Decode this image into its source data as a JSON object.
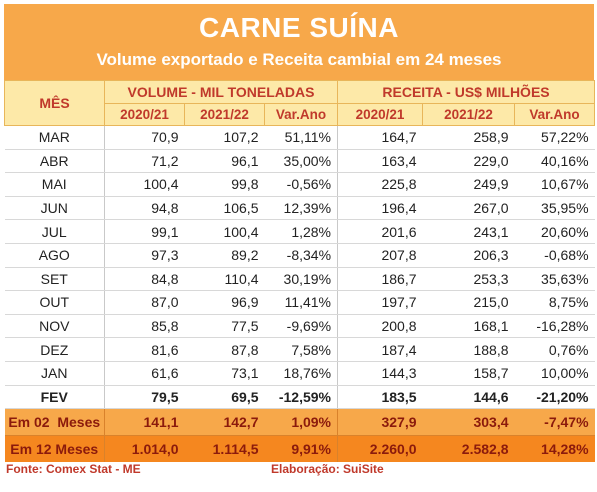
{
  "title": "CARNE SUÍNA",
  "subtitle": "Volume exportado e Receita cambial em 24 meses",
  "headers": {
    "mes": "MÊS",
    "volume": "VOLUME - MIL TONELADAS",
    "receita": "RECEITA - US$ MILHÕES",
    "cols": [
      "2020/21",
      "2021/22",
      "Var.Ano",
      "2020/21",
      "2021/22",
      "Var.Ano"
    ]
  },
  "rows": [
    {
      "mes": "MAR",
      "v1": "70,9",
      "v2": "107,2",
      "vv": "51,11%",
      "r1": "164,7",
      "r2": "258,9",
      "rv": "57,22%"
    },
    {
      "mes": "ABR",
      "v1": "71,2",
      "v2": "96,1",
      "vv": "35,00%",
      "r1": "163,4",
      "r2": "229,0",
      "rv": "40,16%"
    },
    {
      "mes": "MAI",
      "v1": "100,4",
      "v2": "99,8",
      "vv": "-0,56%",
      "r1": "225,8",
      "r2": "249,9",
      "rv": "10,67%"
    },
    {
      "mes": "JUN",
      "v1": "94,8",
      "v2": "106,5",
      "vv": "12,39%",
      "r1": "196,4",
      "r2": "267,0",
      "rv": "35,95%"
    },
    {
      "mes": "JUL",
      "v1": "99,1",
      "v2": "100,4",
      "vv": "1,28%",
      "r1": "201,6",
      "r2": "243,1",
      "rv": "20,60%"
    },
    {
      "mes": "AGO",
      "v1": "97,3",
      "v2": "89,2",
      "vv": "-8,34%",
      "r1": "207,8",
      "r2": "206,3",
      "rv": "-0,68%"
    },
    {
      "mes": "SET",
      "v1": "84,8",
      "v2": "110,4",
      "vv": "30,19%",
      "r1": "186,7",
      "r2": "253,3",
      "rv": "35,63%"
    },
    {
      "mes": "OUT",
      "v1": "87,0",
      "v2": "96,9",
      "vv": "11,41%",
      "r1": "197,7",
      "r2": "215,0",
      "rv": "8,75%"
    },
    {
      "mes": "NOV",
      "v1": "85,8",
      "v2": "77,5",
      "vv": "-9,69%",
      "r1": "200,8",
      "r2": "168,1",
      "rv": "-16,28%"
    },
    {
      "mes": "DEZ",
      "v1": "81,6",
      "v2": "87,8",
      "vv": "7,58%",
      "r1": "187,4",
      "r2": "188,8",
      "rv": "0,76%"
    },
    {
      "mes": "JAN",
      "v1": "61,6",
      "v2": "73,1",
      "vv": "18,76%",
      "r1": "144,3",
      "r2": "158,7",
      "rv": "10,00%"
    },
    {
      "mes": "FEV",
      "v1": "79,5",
      "v2": "69,5",
      "vv": "-12,59%",
      "r1": "183,5",
      "r2": "144,6",
      "rv": "-21,20%"
    }
  ],
  "totals": [
    {
      "mes": "Em 02  Meses",
      "v1": "141,1",
      "v2": "142,7",
      "vv": "1,09%",
      "r1": "327,9",
      "r2": "303,4",
      "rv": "-7,47%"
    },
    {
      "mes": "Em 12 Meses",
      "v1": "1.014,0",
      "v2": "1.114,5",
      "vv": "9,91%",
      "r1": "2.260,0",
      "r2": "2.582,8",
      "rv": "14,28%"
    }
  ],
  "footer": {
    "fonte": "Fonte: Comex Stat - ME",
    "elaboracao": "Elaboração: SuiSite"
  },
  "colors": {
    "header_band": "#f7a84a",
    "header_fill": "#fde9a8",
    "header_text": "#c0392b",
    "total_2m": "#f7a84a",
    "total_12m": "#f5871f"
  }
}
